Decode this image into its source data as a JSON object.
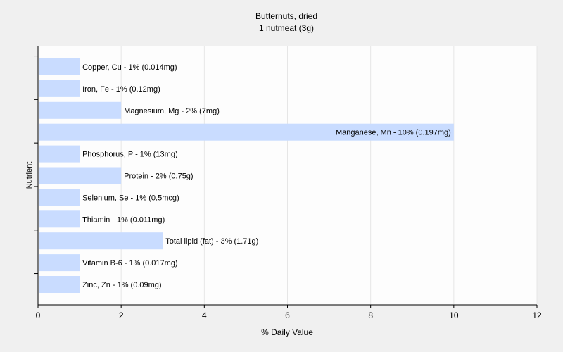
{
  "chart_data": {
    "type": "bar",
    "orientation": "horizontal",
    "title": "Butternuts, dried",
    "subtitle": "1 nutmeat (3g)",
    "xlabel": "% Daily Value",
    "ylabel": "Nutrient",
    "xlim": [
      0,
      12
    ],
    "xticks": [
      "0",
      "2",
      "4",
      "6",
      "8",
      "10",
      "12"
    ],
    "grid": true,
    "colors": {
      "bar": "#c9dcff",
      "grid": "#e6e6e6",
      "plot_bg": "#fdfdfd",
      "page_bg": "#f0f0f0"
    },
    "bars": [
      {
        "value": 1,
        "label": "Copper, Cu - 1% (0.014mg)"
      },
      {
        "value": 1,
        "label": "Iron, Fe - 1% (0.12mg)"
      },
      {
        "value": 2,
        "label": "Magnesium, Mg - 2% (7mg)"
      },
      {
        "value": 10,
        "label": "Manganese, Mn - 10% (0.197mg)"
      },
      {
        "value": 1,
        "label": "Phosphorus, P - 1% (13mg)"
      },
      {
        "value": 2,
        "label": "Protein - 2% (0.75g)"
      },
      {
        "value": 1,
        "label": "Selenium, Se - 1% (0.5mcg)"
      },
      {
        "value": 1,
        "label": "Thiamin - 1% (0.011mg)"
      },
      {
        "value": 3,
        "label": "Total lipid (fat) - 3% (1.71g)"
      },
      {
        "value": 1,
        "label": "Vitamin B-6 - 1% (0.017mg)"
      },
      {
        "value": 1,
        "label": "Zinc, Zn - 1% (0.09mg)"
      }
    ]
  }
}
